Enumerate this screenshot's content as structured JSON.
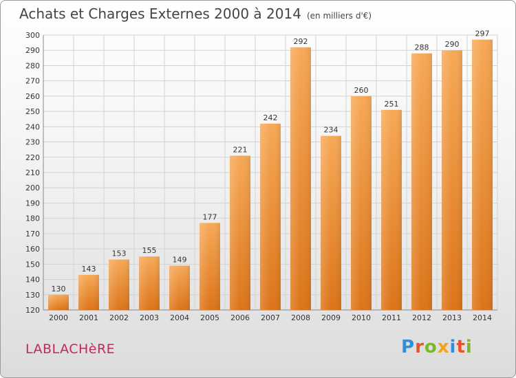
{
  "header": {
    "title": "Achats et Charges Externes 2000 à 2014",
    "unit": "(en milliers d'€)"
  },
  "footer": {
    "commune": "LABLACHèRE",
    "logo": {
      "letters": [
        "P",
        "r",
        "o",
        "x",
        "i",
        "t",
        "i"
      ],
      "colors": [
        "#2f8fd8",
        "#e8532a",
        "#79b82b",
        "#f2a418",
        "#2f8fd8",
        "#e8532a",
        "#79b82b"
      ]
    }
  },
  "chart_data": {
    "type": "bar",
    "categories": [
      "2000",
      "2001",
      "2002",
      "2003",
      "2004",
      "2005",
      "2006",
      "2007",
      "2008",
      "2009",
      "2010",
      "2011",
      "2012",
      "2013",
      "2014"
    ],
    "values": [
      130,
      143,
      153,
      155,
      149,
      177,
      221,
      242,
      292,
      234,
      260,
      251,
      288,
      290,
      297
    ],
    "ylim": [
      120,
      300
    ],
    "yticks": [
      120,
      130,
      140,
      150,
      160,
      170,
      180,
      190,
      200,
      210,
      220,
      230,
      240,
      250,
      260,
      270,
      280,
      290,
      300
    ],
    "grid": true,
    "bar_color": "#f0932e"
  }
}
